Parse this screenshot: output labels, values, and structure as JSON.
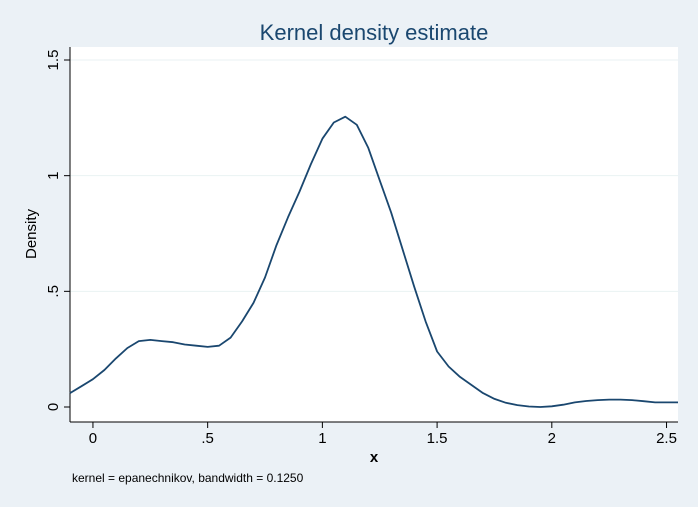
{
  "chart_data": {
    "type": "line",
    "title": "Kernel density estimate",
    "xlabel": "x",
    "ylabel": "Density",
    "note": "kernel = epanechnikov, bandwidth = 0.1250",
    "xlim": [
      -0.1,
      2.55
    ],
    "ylim": [
      0,
      1.5
    ],
    "x_ticks": [
      0,
      0.5,
      1,
      1.5,
      2,
      2.5
    ],
    "x_tick_labels": [
      "0",
      ".5",
      "1",
      "1.5",
      "2",
      "2.5"
    ],
    "y_ticks": [
      0,
      0.5,
      1,
      1.5
    ],
    "y_tick_labels": [
      "0",
      ".5",
      "1",
      "1.5"
    ],
    "grid": true,
    "line_color": "#1a476f",
    "series": [
      {
        "x": [
          -0.1,
          -0.05,
          0.0,
          0.05,
          0.1,
          0.15,
          0.2,
          0.25,
          0.3,
          0.35,
          0.4,
          0.45,
          0.5,
          0.55,
          0.6,
          0.65,
          0.7,
          0.75,
          0.8,
          0.85,
          0.9,
          0.95,
          1.0,
          1.05,
          1.1,
          1.15,
          1.2,
          1.25,
          1.3,
          1.35,
          1.4,
          1.45,
          1.5,
          1.55,
          1.6,
          1.65,
          1.7,
          1.75,
          1.8,
          1.85,
          1.9,
          1.95,
          2.0,
          2.05,
          2.1,
          2.15,
          2.2,
          2.25,
          2.3,
          2.35,
          2.4,
          2.45,
          2.5,
          2.55
        ],
        "y": [
          0.06,
          0.09,
          0.12,
          0.16,
          0.21,
          0.255,
          0.285,
          0.29,
          0.285,
          0.28,
          0.27,
          0.265,
          0.26,
          0.265,
          0.3,
          0.37,
          0.45,
          0.56,
          0.7,
          0.82,
          0.93,
          1.05,
          1.16,
          1.23,
          1.255,
          1.22,
          1.12,
          0.98,
          0.84,
          0.68,
          0.52,
          0.37,
          0.24,
          0.175,
          0.13,
          0.095,
          0.06,
          0.035,
          0.018,
          0.008,
          0.002,
          0.0,
          0.003,
          0.01,
          0.02,
          0.026,
          0.03,
          0.032,
          0.032,
          0.03,
          0.025,
          0.02,
          0.02,
          0.02
        ]
      }
    ]
  }
}
